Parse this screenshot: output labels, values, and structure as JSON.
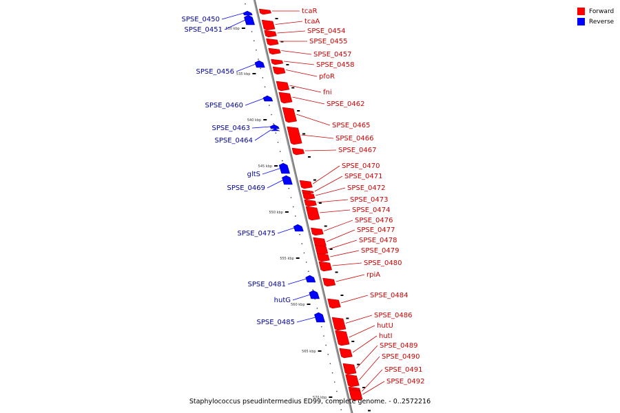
{
  "title": "Staphylococcus pseudintermedius ED99, complete genome. - 0..2572216",
  "legend": {
    "forward_label": "Forward",
    "reverse_label": "Reverse",
    "forward_color": "#ff0000",
    "reverse_color": "#0000ff"
  },
  "colors": {
    "forward_label": "#cc0000",
    "reverse_label": "#000099",
    "backbone": "#999999"
  },
  "kbp_ticks": [
    "530 kbp",
    "535 kbp",
    "540 kbp",
    "545 kbp",
    "550 kbp",
    "555 kbp",
    "560 kbp",
    "565 kbp",
    "570 kbp"
  ],
  "forward_genes": [
    "tcaR",
    "tcaA",
    "SPSE_0454",
    "SPSE_0455",
    "SPSE_0457",
    "SPSE_0458",
    "pfoR",
    "fni",
    "SPSE_0462",
    "SPSE_0465",
    "SPSE_0466",
    "SPSE_0467",
    "SPSE_0470",
    "SPSE_0471",
    "SPSE_0472",
    "SPSE_0473",
    "SPSE_0474",
    "SPSE_0476",
    "SPSE_0477",
    "SPSE_0478",
    "SPSE_0479",
    "SPSE_0480",
    "rpiA",
    "SPSE_0484",
    "SPSE_0486",
    "hutU",
    "hutI",
    "SPSE_0489",
    "SPSE_0490",
    "SPSE_0491",
    "SPSE_0492"
  ],
  "reverse_genes": [
    "SPSE_0450",
    "SPSE_0451",
    "SPSE_0456",
    "SPSE_0460",
    "SPSE_0463",
    "SPSE_0464",
    "gltS",
    "SPSE_0469",
    "SPSE_0475",
    "SPSE_0481",
    "hutG",
    "SPSE_0485"
  ]
}
